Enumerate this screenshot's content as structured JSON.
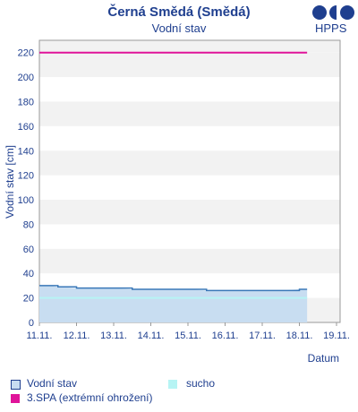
{
  "header": {
    "title": "Černá Smědá (Smědá)",
    "subtitle": "Vodní stav",
    "logo_text": "HPPS"
  },
  "chart_data": {
    "type": "line",
    "title": "Černá Smědá (Smědá)",
    "subtitle": "Vodní stav",
    "ylabel": "Vodní stav [cm]",
    "xlabel": "Datum",
    "ylim": [
      0,
      230
    ],
    "y_ticks": [
      0,
      20,
      40,
      60,
      80,
      100,
      120,
      140,
      160,
      180,
      200,
      220
    ],
    "x_ticks": [
      "11.11.",
      "12.11.",
      "13.11.",
      "14.11.",
      "15.11.",
      "16.11.",
      "17.11.",
      "18.11.",
      "19.11."
    ],
    "grid": "horizontal bands",
    "series": [
      {
        "name": "Vodní stav",
        "color": "#3a78b8",
        "fill": "#c8ddf1",
        "x": [
          "11.11. 00:00",
          "11.11. 06:00",
          "11.11. 12:00",
          "12.11. 00:00",
          "12.11. 12:00",
          "13.11. 00:00",
          "13.11. 12:00",
          "14.11. 00:00",
          "14.11. 12:00",
          "15.11. 00:00",
          "15.11. 12:00",
          "16.11. 00:00",
          "16.11. 12:00",
          "17.11. 00:00",
          "17.11. 12:00",
          "18.11. 00:00",
          "18.11. 05:00"
        ],
        "values": [
          30,
          30,
          29,
          28,
          28,
          28,
          27,
          27,
          27,
          27,
          26,
          26,
          26,
          26,
          26,
          27,
          27
        ]
      },
      {
        "name": "sucho",
        "color": "#b6f4f4",
        "x": [
          "11.11. 00:00",
          "18.11. 05:00"
        ],
        "values": [
          20,
          20
        ]
      },
      {
        "name": "3.SPA (extrémní ohrožení)",
        "color": "#e0149a",
        "x": [
          "11.11. 00:00",
          "18.11. 05:00"
        ],
        "values": [
          220,
          220
        ]
      }
    ],
    "legend": [
      {
        "label": "Vodní stav",
        "color": "#c8ddf1",
        "border": "#1f3f8f"
      },
      {
        "label": "sucho",
        "color": "#b6f4f4"
      },
      {
        "label": "3.SPA (extrémní ohrožení)",
        "color": "#e0149a"
      }
    ],
    "legend_position": "bottom"
  }
}
